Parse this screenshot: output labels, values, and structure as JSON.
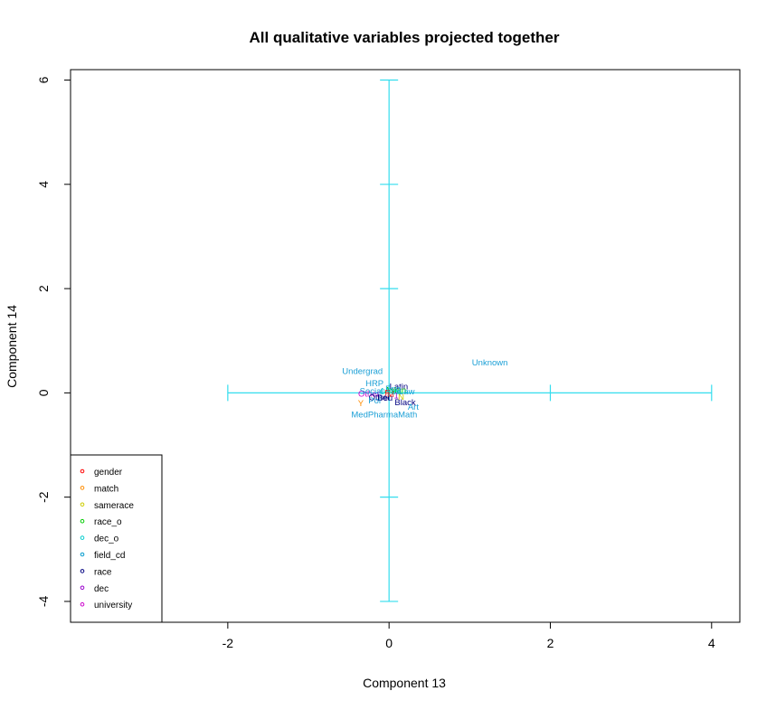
{
  "chart_data": {
    "type": "scatter",
    "title": "All qualitative variables projected together",
    "xlabel": "Component 13",
    "ylabel": "Component 14",
    "xlim": [
      -3.95,
      4.35
    ],
    "ylim": [
      -4.4,
      6.2
    ],
    "x_ticks": [
      -2,
      0,
      2,
      4
    ],
    "y_ticks": [
      -4,
      -2,
      0,
      2,
      4,
      6
    ],
    "grid": false,
    "legend_position": "bottom-left",
    "legend": [
      {
        "name": "gender",
        "color": "#ff0000"
      },
      {
        "name": "match",
        "color": "#ff8c00"
      },
      {
        "name": "samerace",
        "color": "#cccc00"
      },
      {
        "name": "race_o",
        "color": "#00cc00"
      },
      {
        "name": "dec_o",
        "color": "#00cccc"
      },
      {
        "name": "field_cd",
        "color": "#0099cc"
      },
      {
        "name": "race",
        "color": "#000080"
      },
      {
        "name": "dec",
        "color": "#9900cc"
      },
      {
        "name": "university",
        "color": "#cc00cc"
      }
    ],
    "crosshair": {
      "color": "#33ddee",
      "horizontal": {
        "x": [
          -2,
          4
        ],
        "y": 0,
        "ticks_x": [
          -2,
          0,
          2,
          4
        ]
      },
      "vertical": {
        "x": 0,
        "y": [
          -4,
          6
        ],
        "ticks_y": [
          -4,
          -2,
          0,
          2,
          4,
          6
        ]
      }
    },
    "points": [
      {
        "label": "Unknown",
        "x": 1.25,
        "y": 0.58,
        "color": "#1a9fd6"
      },
      {
        "label": "Undergrad",
        "x": -0.33,
        "y": 0.41,
        "color": "#1a9fd6"
      },
      {
        "label": "HRP",
        "x": -0.18,
        "y": 0.18,
        "color": "#1a9fd6"
      },
      {
        "label": "Latin",
        "x": 0.12,
        "y": 0.12,
        "color": "#000080"
      },
      {
        "label": "Asian",
        "x": 0.08,
        "y": 0.05,
        "color": "#00cc00"
      },
      {
        "label": "Other",
        "x": -0.25,
        "y": -0.02,
        "color": "#cc00cc"
      },
      {
        "label": "Social",
        "x": -0.22,
        "y": 0.03,
        "color": "#1a9fd6"
      },
      {
        "label": "Eng",
        "x": 0.05,
        "y": 0.08,
        "color": "#1a9fd6"
      },
      {
        "label": "Law",
        "x": 0.22,
        "y": 0.02,
        "color": "#1a9fd6"
      },
      {
        "label": "Other",
        "x": -0.12,
        "y": -0.09,
        "color": "#000080"
      },
      {
        "label": "Beu",
        "x": -0.05,
        "y": -0.1,
        "color": "#000080"
      },
      {
        "label": "Pol",
        "x": -0.18,
        "y": -0.15,
        "color": "#1a9fd6"
      },
      {
        "label": "Black",
        "x": 0.2,
        "y": -0.18,
        "color": "#000080"
      },
      {
        "label": "Y",
        "x": -0.35,
        "y": -0.2,
        "color": "#ff8c00"
      },
      {
        "label": "Art",
        "x": 0.3,
        "y": -0.27,
        "color": "#1a9fd6"
      },
      {
        "label": "MedPharmaMath",
        "x": -0.06,
        "y": -0.42,
        "color": "#1a9fd6"
      },
      {
        "label": "F",
        "x": -0.02,
        "y": 0.0,
        "color": "#ff0000"
      },
      {
        "label": "M",
        "x": 0.02,
        "y": -0.03,
        "color": "#ff0000"
      },
      {
        "label": "1",
        "x": 0.09,
        "y": -0.05,
        "color": "#9900cc"
      },
      {
        "label": "0",
        "x": -0.08,
        "y": 0.02,
        "color": "#00cccc"
      },
      {
        "label": "N",
        "x": 0.15,
        "y": -0.08,
        "color": "#cccc00"
      },
      {
        "label": "Yes",
        "x": 0.05,
        "y": 0.02,
        "color": "#00cccc"
      }
    ]
  }
}
